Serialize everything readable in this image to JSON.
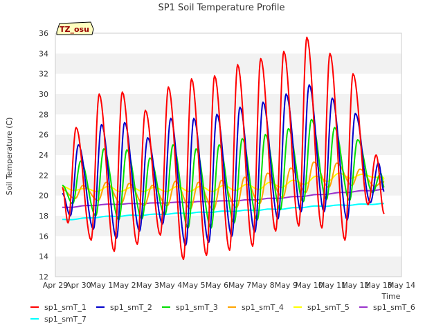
{
  "chart_data": {
    "type": "line",
    "title": "SP1 Soil Temperature Profile",
    "xlabel": "Time",
    "ylabel": "Soil Temperature (C)",
    "ylim": [
      12,
      36
    ],
    "yticks": [
      12,
      14,
      16,
      18,
      20,
      22,
      24,
      26,
      28,
      30,
      32,
      34,
      36
    ],
    "xlim": [
      0,
      15
    ],
    "xticks": [
      {
        "x": 0,
        "label": "Apr 29"
      },
      {
        "x": 1,
        "label": "Apr 30"
      },
      {
        "x": 2,
        "label": "May 1"
      },
      {
        "x": 3,
        "label": "May 2"
      },
      {
        "x": 4,
        "label": "May 3"
      },
      {
        "x": 5,
        "label": "May 4"
      },
      {
        "x": 6,
        "label": "May 5"
      },
      {
        "x": 7,
        "label": "May 6"
      },
      {
        "x": 8,
        "label": "May 7"
      },
      {
        "x": 9,
        "label": "May 8"
      },
      {
        "x": 10,
        "label": "May 9"
      },
      {
        "x": 11,
        "label": "May 10"
      },
      {
        "x": 12,
        "label": "May 11"
      },
      {
        "x": 13,
        "label": "May 12"
      },
      {
        "x": 14,
        "label": "May 13"
      },
      {
        "x": 15,
        "label": "May 14"
      }
    ],
    "station_label": "TZ_osu",
    "x_start": 0.3,
    "x_end": 14.25,
    "series": [
      {
        "name": "sp1_smT_1",
        "color": "#ff0000",
        "peaks": [
          [
            0.3,
            20.8
          ],
          [
            0.9,
            26.7
          ],
          [
            1.9,
            30.0
          ],
          [
            2.9,
            30.2
          ],
          [
            3.9,
            28.4
          ],
          [
            4.9,
            30.7
          ],
          [
            5.9,
            31.5
          ],
          [
            6.9,
            31.8
          ],
          [
            7.9,
            32.9
          ],
          [
            8.9,
            33.5
          ],
          [
            9.9,
            34.2
          ],
          [
            10.9,
            35.6
          ],
          [
            11.9,
            34.0
          ],
          [
            12.9,
            32.0
          ],
          [
            13.9,
            24.0
          ]
        ],
        "troughs": [
          [
            0.55,
            17.3
          ],
          [
            1.55,
            15.6
          ],
          [
            2.55,
            14.5
          ],
          [
            3.55,
            15.2
          ],
          [
            4.55,
            16.1
          ],
          [
            5.55,
            13.7
          ],
          [
            6.55,
            14.1
          ],
          [
            7.55,
            14.6
          ],
          [
            8.55,
            15.0
          ],
          [
            9.55,
            16.5
          ],
          [
            10.55,
            17.0
          ],
          [
            11.55,
            16.8
          ],
          [
            12.55,
            15.6
          ],
          [
            13.55,
            19.1
          ],
          [
            14.25,
            18.2
          ]
        ]
      },
      {
        "name": "sp1_smT_2",
        "color": "#0000cc",
        "peaks": [
          [
            0.3,
            20.2
          ],
          [
            1.0,
            25.0
          ],
          [
            2.0,
            27.0
          ],
          [
            3.0,
            27.2
          ],
          [
            4.0,
            25.7
          ],
          [
            5.0,
            27.6
          ],
          [
            6.0,
            27.6
          ],
          [
            7.0,
            28.0
          ],
          [
            8.0,
            28.7
          ],
          [
            9.0,
            29.2
          ],
          [
            10.0,
            30.0
          ],
          [
            11.0,
            30.9
          ],
          [
            12.0,
            29.6
          ],
          [
            13.0,
            28.1
          ],
          [
            14.0,
            23.2
          ]
        ],
        "troughs": [
          [
            0.65,
            18.0
          ],
          [
            1.65,
            16.7
          ],
          [
            2.65,
            15.8
          ],
          [
            3.65,
            16.5
          ],
          [
            4.65,
            17.2
          ],
          [
            5.65,
            15.1
          ],
          [
            6.65,
            15.4
          ],
          [
            7.65,
            16.0
          ],
          [
            8.65,
            16.4
          ],
          [
            9.65,
            17.7
          ],
          [
            10.65,
            18.4
          ],
          [
            11.65,
            18.4
          ],
          [
            12.65,
            17.6
          ],
          [
            13.65,
            19.3
          ],
          [
            14.25,
            20.4
          ]
        ]
      },
      {
        "name": "sp1_smT_3",
        "color": "#00dd00",
        "peaks": [
          [
            0.3,
            21.0
          ],
          [
            1.1,
            23.4
          ],
          [
            2.1,
            24.6
          ],
          [
            3.1,
            24.5
          ],
          [
            4.1,
            23.7
          ],
          [
            5.1,
            25.0
          ],
          [
            6.1,
            24.6
          ],
          [
            7.1,
            25.0
          ],
          [
            8.1,
            25.6
          ],
          [
            9.1,
            26.0
          ],
          [
            10.1,
            26.6
          ],
          [
            11.1,
            27.5
          ],
          [
            12.1,
            26.7
          ],
          [
            13.1,
            25.5
          ],
          [
            14.1,
            22.2
          ]
        ],
        "troughs": [
          [
            0.75,
            19.2
          ],
          [
            1.75,
            18.0
          ],
          [
            2.75,
            17.6
          ],
          [
            3.75,
            17.7
          ],
          [
            4.75,
            18.1
          ],
          [
            5.75,
            16.8
          ],
          [
            6.75,
            16.8
          ],
          [
            7.75,
            17.3
          ],
          [
            8.75,
            17.6
          ],
          [
            9.75,
            18.6
          ],
          [
            10.75,
            19.4
          ],
          [
            11.75,
            19.6
          ],
          [
            12.75,
            19.5
          ],
          [
            13.75,
            20.3
          ],
          [
            14.25,
            20.8
          ]
        ]
      },
      {
        "name": "sp1_smT_4",
        "color": "#ffa500",
        "peaks": [
          [
            0.3,
            20.6
          ],
          [
            1.2,
            21.0
          ],
          [
            2.2,
            21.3
          ],
          [
            3.2,
            21.2
          ],
          [
            4.2,
            21.0
          ],
          [
            5.2,
            21.4
          ],
          [
            6.2,
            21.3
          ],
          [
            7.2,
            21.5
          ],
          [
            8.2,
            21.8
          ],
          [
            9.2,
            22.2
          ],
          [
            10.2,
            22.7
          ],
          [
            11.2,
            23.3
          ],
          [
            12.2,
            23.2
          ],
          [
            13.2,
            22.6
          ],
          [
            14.2,
            21.4
          ]
        ],
        "troughs": [
          [
            0.85,
            19.7
          ],
          [
            1.85,
            19.5
          ],
          [
            2.85,
            19.2
          ],
          [
            3.85,
            19.0
          ],
          [
            4.85,
            19.0
          ],
          [
            5.85,
            18.7
          ],
          [
            6.85,
            18.6
          ],
          [
            7.85,
            18.8
          ],
          [
            8.85,
            19.2
          ],
          [
            9.85,
            19.8
          ],
          [
            10.85,
            20.3
          ],
          [
            11.85,
            20.8
          ],
          [
            12.85,
            21.0
          ],
          [
            13.85,
            20.9
          ],
          [
            14.25,
            21.3
          ]
        ]
      },
      {
        "name": "sp1_smT_5",
        "color": "#ffff00",
        "peaks": [
          [
            0.3,
            20.9
          ],
          [
            1.3,
            20.7
          ],
          [
            2.3,
            20.9
          ],
          [
            3.3,
            20.8
          ],
          [
            4.3,
            20.8
          ],
          [
            5.3,
            20.9
          ],
          [
            6.3,
            20.9
          ],
          [
            7.3,
            21.0
          ],
          [
            8.3,
            21.1
          ],
          [
            9.3,
            21.3
          ],
          [
            10.3,
            21.5
          ],
          [
            11.3,
            21.9
          ],
          [
            12.3,
            22.2
          ],
          [
            13.3,
            22.1
          ],
          [
            14.2,
            21.8
          ]
        ],
        "troughs": [
          [
            0.8,
            20.5
          ],
          [
            1.8,
            20.4
          ],
          [
            2.8,
            20.4
          ],
          [
            3.8,
            20.4
          ],
          [
            4.8,
            20.4
          ],
          [
            5.8,
            20.4
          ],
          [
            6.8,
            20.4
          ],
          [
            7.8,
            20.5
          ],
          [
            8.8,
            20.6
          ],
          [
            9.8,
            20.8
          ],
          [
            10.8,
            21.1
          ],
          [
            11.8,
            21.4
          ],
          [
            12.8,
            21.7
          ],
          [
            13.8,
            21.8
          ],
          [
            14.25,
            21.6
          ]
        ]
      },
      {
        "name": "sp1_smT_6",
        "color": "#9932cc",
        "trend": [
          [
            0.3,
            18.8
          ],
          [
            2,
            19.1
          ],
          [
            5,
            19.3
          ],
          [
            8,
            19.5
          ],
          [
            10,
            19.8
          ],
          [
            12,
            20.2
          ],
          [
            13,
            20.4
          ],
          [
            14.25,
            20.6
          ]
        ]
      },
      {
        "name": "sp1_smT_7",
        "color": "#00ffff",
        "trend": [
          [
            0.3,
            17.6
          ],
          [
            1,
            17.7
          ],
          [
            2,
            17.9
          ],
          [
            3,
            18.0
          ],
          [
            4,
            18.1
          ],
          [
            5,
            18.2
          ],
          [
            6,
            18.3
          ],
          [
            7,
            18.4
          ],
          [
            8,
            18.5
          ],
          [
            9,
            18.6
          ],
          [
            10,
            18.7
          ],
          [
            11,
            18.9
          ],
          [
            12,
            19.0
          ],
          [
            13,
            19.1
          ],
          [
            14.25,
            19.2
          ]
        ]
      }
    ]
  }
}
